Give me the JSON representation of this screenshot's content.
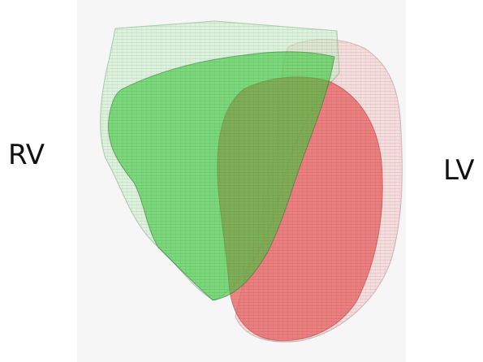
{
  "labels": {
    "left": "RV",
    "right": "LV"
  }
}
